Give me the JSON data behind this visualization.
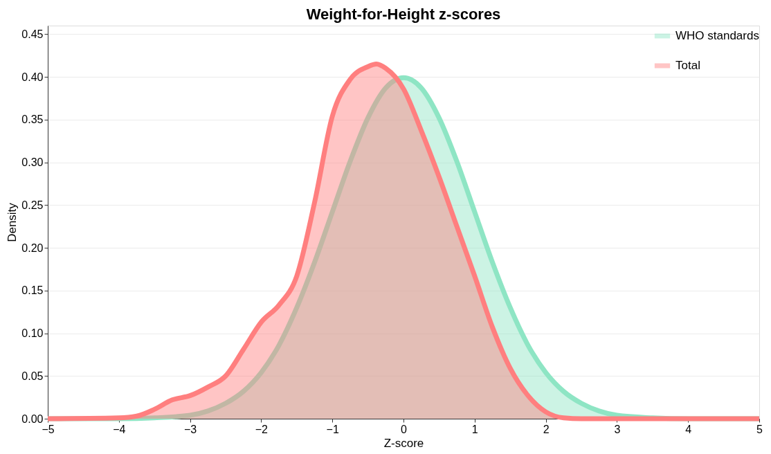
{
  "chart_data": {
    "type": "area",
    "title": "Weight-for-Height z-scores",
    "xlabel": "Z-score",
    "ylabel": "Density",
    "xlim": [
      -5,
      5
    ],
    "xticks": [
      -5,
      -4,
      -3,
      -2,
      -1,
      0,
      1,
      2,
      3,
      4,
      5
    ],
    "ylim": [
      0,
      0.46
    ],
    "yticks": [
      {
        "value": 0,
        "label": "0.00"
      },
      {
        "value": 0.05,
        "label": "0.05"
      },
      {
        "value": 0.1,
        "label": "0.10"
      },
      {
        "value": 0.15,
        "label": "0.15"
      },
      {
        "value": 0.2,
        "label": "0.20"
      },
      {
        "value": 0.25,
        "label": "0.25"
      },
      {
        "value": 0.3,
        "label": "0.30"
      },
      {
        "value": 0.35,
        "label": "0.35"
      },
      {
        "value": 0.4,
        "label": "0.40"
      },
      {
        "value": 0.45,
        "label": "0.45"
      }
    ],
    "grid": "y",
    "legend": "top right",
    "series": [
      {
        "name": "WHO standards",
        "color": "#8ee5c4",
        "x": [
          -5,
          -4,
          -3.5,
          -3,
          -2.75,
          -2.5,
          -2.25,
          -2,
          -1.75,
          -1.5,
          -1.25,
          -1,
          -0.75,
          -0.5,
          -0.25,
          0,
          0.25,
          0.5,
          0.75,
          1,
          1.25,
          1.5,
          1.75,
          2,
          2.25,
          2.5,
          2.75,
          3,
          3.5,
          4,
          5
        ],
        "values": [
          0,
          0,
          0.001,
          0.004,
          0.009,
          0.018,
          0.032,
          0.054,
          0.086,
          0.13,
          0.183,
          0.242,
          0.301,
          0.352,
          0.387,
          0.399,
          0.387,
          0.352,
          0.301,
          0.242,
          0.183,
          0.13,
          0.086,
          0.054,
          0.032,
          0.018,
          0.009,
          0.004,
          0.001,
          0,
          0
        ]
      },
      {
        "name": "Total",
        "color": "#ff7f7f",
        "x": [
          -5,
          -4,
          -3.75,
          -3.5,
          -3.25,
          -3,
          -2.75,
          -2.5,
          -2.25,
          -2,
          -1.75,
          -1.5,
          -1.25,
          -1,
          -0.75,
          -0.5,
          -0.38,
          -0.25,
          0,
          0.25,
          0.5,
          0.75,
          1,
          1.25,
          1.5,
          1.75,
          2,
          2.25,
          2.5,
          5
        ],
        "values": [
          0,
          0.001,
          0.003,
          0.011,
          0.022,
          0.027,
          0.037,
          0.05,
          0.081,
          0.113,
          0.133,
          0.167,
          0.253,
          0.354,
          0.397,
          0.412,
          0.415,
          0.41,
          0.386,
          0.337,
          0.283,
          0.225,
          0.167,
          0.107,
          0.059,
          0.027,
          0.008,
          0.001,
          0,
          0
        ]
      }
    ]
  }
}
